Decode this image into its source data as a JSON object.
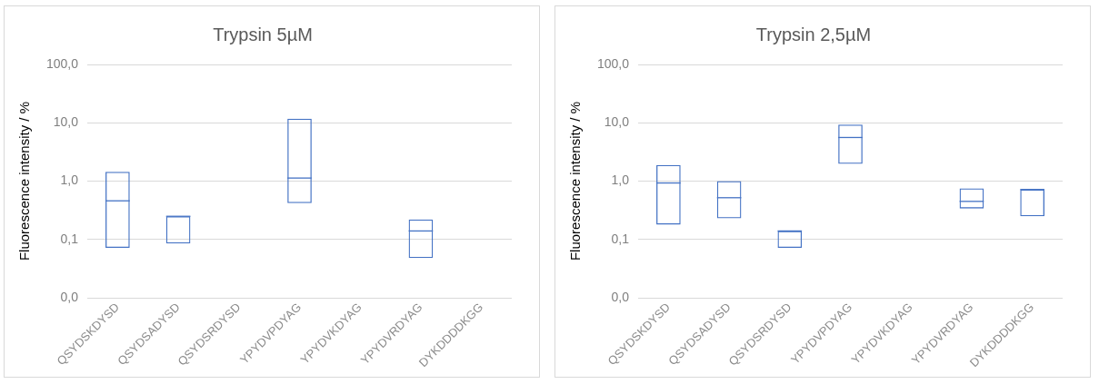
{
  "chart_data": [
    {
      "type": "box",
      "title": "Trypsin 5µM",
      "ylabel": "Fluorescence intensity / %",
      "categories": [
        "QSYDSKDYSD",
        "QSYDSADYSD",
        "QSYDSRDYSD",
        "YPYDVPDYAG",
        "YPYDVKDYAG",
        "YPYDVRDYAG",
        "DYKDDDDKGG"
      ],
      "series": [
        {
          "color": "#4472c4",
          "boxes": [
            {
              "low": 0.072,
              "q1": 0.072,
              "median": 0.46,
              "q3": 1.45,
              "high": 1.45
            },
            {
              "low": 0.085,
              "q1": 0.085,
              "median": 0.25,
              "q3": 0.25,
              "high": 0.25
            },
            null,
            {
              "low": 0.42,
              "q1": 0.42,
              "median": 1.13,
              "q3": 11.8,
              "high": 11.8
            },
            null,
            {
              "low": 0.048,
              "q1": 0.048,
              "median": 0.14,
              "q3": 0.22,
              "high": 0.22
            },
            null
          ]
        }
      ],
      "log": "y",
      "ylim": [
        0.01,
        100
      ],
      "yticks": [
        {
          "value": 0.01,
          "label": "0,0"
        },
        {
          "value": 0.1,
          "label": "0,1"
        },
        {
          "value": 1,
          "label": "1,0"
        },
        {
          "value": 10,
          "label": "10,0"
        },
        {
          "value": 100,
          "label": "100,0"
        }
      ],
      "grid": "y",
      "legend": false
    },
    {
      "type": "box",
      "title": "Trypsin 2,5µM",
      "ylabel": "Fluorescence intensity / %",
      "categories": [
        "QSYDSKDYSD",
        "QSYDSADYSD",
        "QSYDSRDYSD",
        "YPYDVPDYAG",
        "YPYDVKDYAG",
        "YPYDVRDYAG",
        "DYKDDDDKGG"
      ],
      "series": [
        {
          "color": "#4472c4",
          "boxes": [
            {
              "low": 0.18,
              "q1": 0.18,
              "median": 0.93,
              "q3": 1.9,
              "high": 1.9
            },
            {
              "low": 0.23,
              "q1": 0.23,
              "median": 0.52,
              "q3": 1.0,
              "high": 1.0
            },
            {
              "low": 0.072,
              "q1": 0.072,
              "median": 0.14,
              "q3": 0.14,
              "high": 0.14
            },
            {
              "low": 1.98,
              "q1": 1.98,
              "median": 5.6,
              "q3": 9.3,
              "high": 9.3
            },
            null,
            {
              "low": 0.34,
              "q1": 0.34,
              "median": 0.45,
              "q3": 0.75,
              "high": 0.75
            },
            {
              "low": 0.25,
              "q1": 0.25,
              "median": 0.72,
              "q3": 0.72,
              "high": 0.72
            }
          ]
        }
      ],
      "log": "y",
      "ylim": [
        0.01,
        100
      ],
      "yticks": [
        {
          "value": 0.01,
          "label": "0,0"
        },
        {
          "value": 0.1,
          "label": "0,1"
        },
        {
          "value": 1,
          "label": "1,0"
        },
        {
          "value": 10,
          "label": "10,0"
        },
        {
          "value": 100,
          "label": "100,0"
        }
      ],
      "grid": "y",
      "legend": false
    }
  ]
}
